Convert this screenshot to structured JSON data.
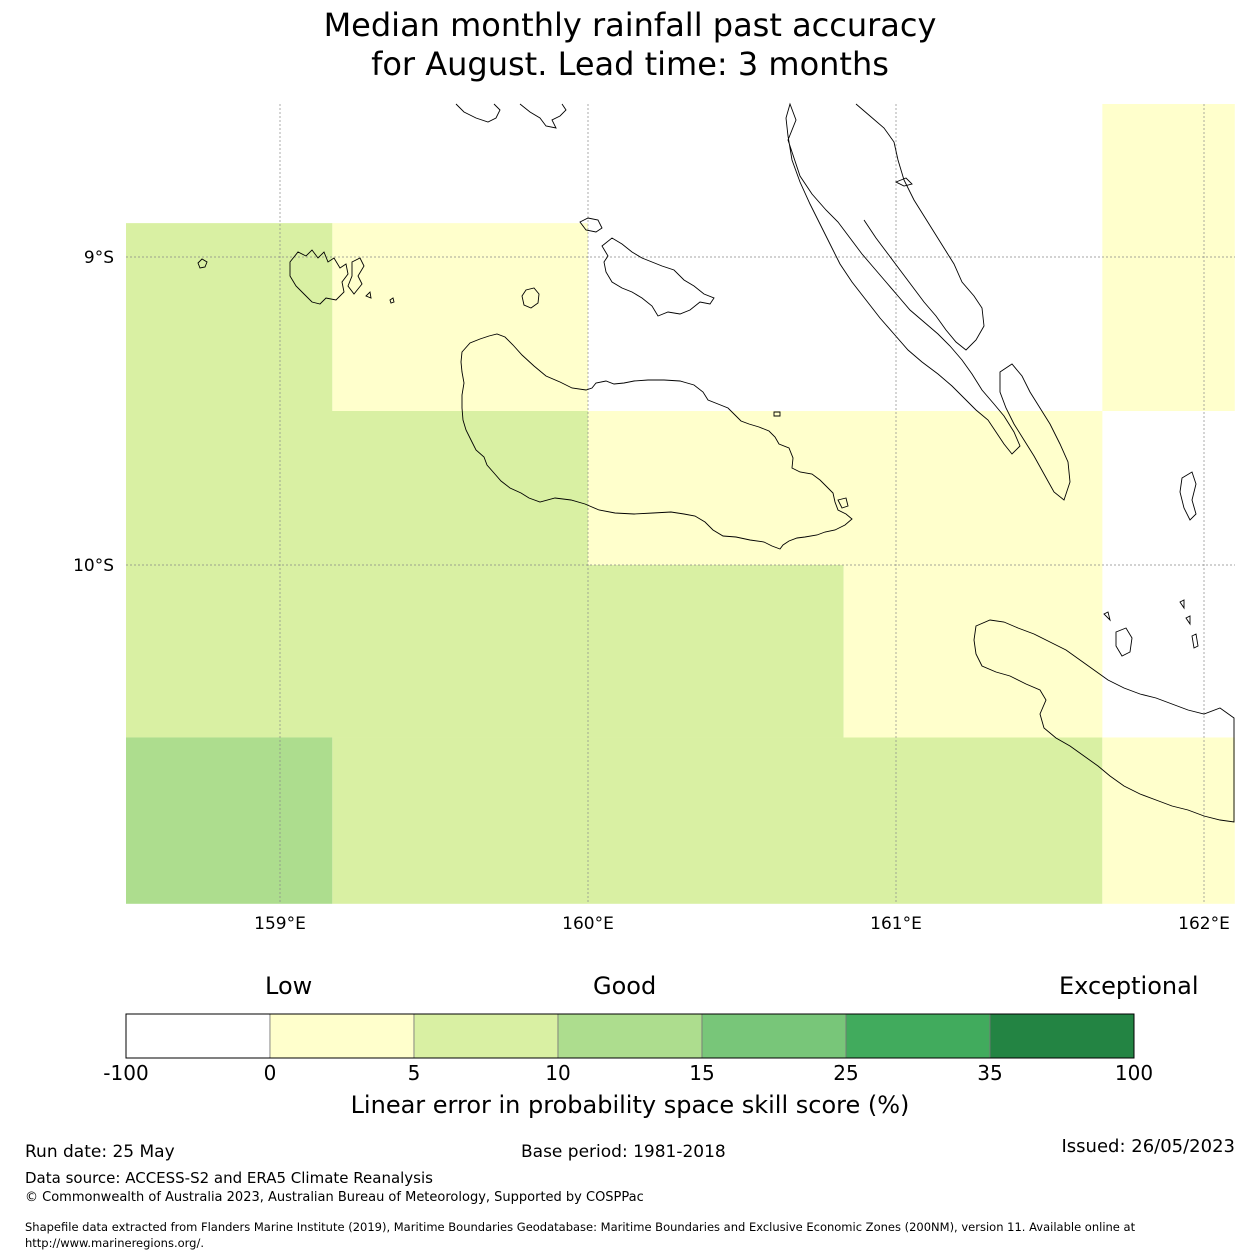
{
  "title_line1": "Median monthly rainfall past accuracy",
  "title_line2": "for August. Lead time: 3 months",
  "map": {
    "lon_range": [
      158.5,
      162.1
    ],
    "lat_range": [
      -11.1,
      -8.5
    ],
    "lat_ticks": [
      {
        "value": -9,
        "label": "9°S"
      },
      {
        "value": -10,
        "label": "10°S"
      }
    ],
    "lon_ticks": [
      {
        "value": 159,
        "label": "159°E"
      },
      {
        "value": 160,
        "label": "160°E"
      },
      {
        "value": 161,
        "label": "161°E"
      },
      {
        "value": 162,
        "label": "162°E"
      }
    ],
    "skill_cells": [
      {
        "lon": [
          158.5,
          159.17
        ],
        "lat": [
          -9.5,
          -8.89
        ],
        "category": "5-10"
      },
      {
        "lon": [
          159.17,
          160.0
        ],
        "lat": [
          -9.5,
          -8.89
        ],
        "category": "0-5"
      },
      {
        "lon": [
          161.67,
          162.1
        ],
        "lat": [
          -9.5,
          -8.5
        ],
        "category": "0-5"
      },
      {
        "lon": [
          158.5,
          160.0
        ],
        "lat": [
          -10.0,
          -9.5
        ],
        "category": "5-10"
      },
      {
        "lon": [
          160.0,
          161.67
        ],
        "lat": [
          -10.0,
          -9.5
        ],
        "category": "0-5"
      },
      {
        "lon": [
          158.5,
          160.83
        ],
        "lat": [
          -10.56,
          -10.0
        ],
        "category": "5-10"
      },
      {
        "lon": [
          160.83,
          161.67
        ],
        "lat": [
          -10.56,
          -10.0
        ],
        "category": "0-5"
      },
      {
        "lon": [
          158.5,
          159.17
        ],
        "lat": [
          -11.1,
          -10.56
        ],
        "category": "10-15"
      },
      {
        "lon": [
          159.17,
          161.67
        ],
        "lat": [
          -11.1,
          -10.56
        ],
        "category": "5-10"
      },
      {
        "lon": [
          161.67,
          162.1
        ],
        "lat": [
          -11.1,
          -10.56
        ],
        "category": "0-5"
      }
    ]
  },
  "colorbar": {
    "head_low": "Low",
    "head_good": "Good",
    "head_exceptional": "Exceptional",
    "ticks": [
      "-100",
      "0",
      "5",
      "10",
      "15",
      "25",
      "35",
      "100"
    ],
    "colors": [
      "#ffffff",
      "#ffffcc",
      "#d9f0a3",
      "#addd8e",
      "#78c679",
      "#41ab5d",
      "#238443"
    ],
    "label": "Linear error in probability space skill score (%)"
  },
  "footer": {
    "run_date": "Run date: 25 May",
    "base_period": "Base period: 1981-2018",
    "issued": "Issued: 26/05/2023",
    "data_source": "Data source: ACCESS-S2 and ERA5 Climate Reanalysis",
    "copyright": "© Commonwealth of Australia 2023, Australian Bureau of Meteorology, Supported by COSPPac",
    "shapefile_line1": "Shapefile data extracted from Flanders Marine Institute (2019), Maritime Boundaries Geodatabase: Maritime Boundaries and Exclusive Economic Zones (200NM), version 11. Available online at",
    "shapefile_line2": "http://www.marineregions.org/."
  }
}
